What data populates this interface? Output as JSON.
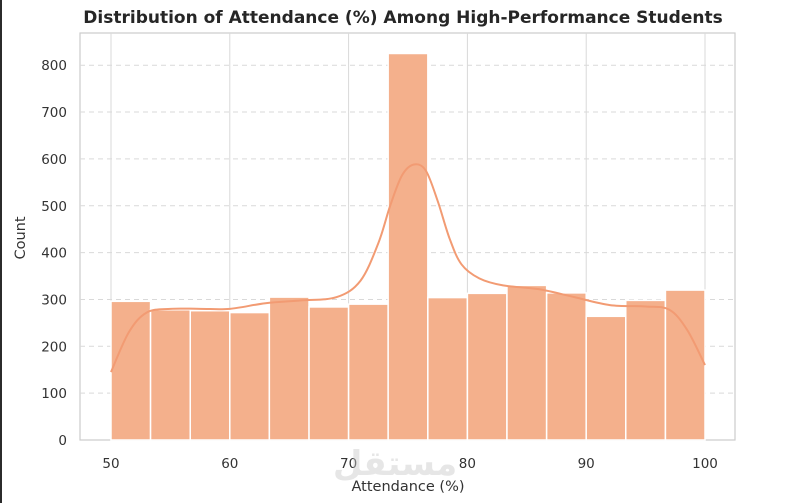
{
  "chart_data": {
    "type": "bar",
    "title": "Distribution of Attendance (%) Among High-Performance Students",
    "xlabel": "Attendance (%)",
    "ylabel": "Count",
    "xlim": [
      50,
      100
    ],
    "ylim": [
      0,
      850
    ],
    "xticks": [
      50,
      60,
      70,
      80,
      90,
      100
    ],
    "yticks": [
      0,
      100,
      200,
      300,
      400,
      500,
      600,
      700,
      800
    ],
    "bin_width": 3.333,
    "bins": [
      {
        "start": 50.0,
        "end": 53.33,
        "count": 296
      },
      {
        "start": 53.33,
        "end": 56.67,
        "count": 278
      },
      {
        "start": 56.67,
        "end": 60.0,
        "count": 276
      },
      {
        "start": 60.0,
        "end": 63.33,
        "count": 272
      },
      {
        "start": 63.33,
        "end": 66.67,
        "count": 305
      },
      {
        "start": 66.67,
        "end": 70.0,
        "count": 284
      },
      {
        "start": 70.0,
        "end": 73.33,
        "count": 290
      },
      {
        "start": 73.33,
        "end": 76.67,
        "count": 825
      },
      {
        "start": 76.67,
        "end": 80.0,
        "count": 304
      },
      {
        "start": 80.0,
        "end": 83.33,
        "count": 313
      },
      {
        "start": 83.33,
        "end": 86.67,
        "count": 330
      },
      {
        "start": 86.67,
        "end": 90.0,
        "count": 314
      },
      {
        "start": 90.0,
        "end": 93.33,
        "count": 264
      },
      {
        "start": 93.33,
        "end": 96.67,
        "count": 298
      },
      {
        "start": 96.67,
        "end": 100.0,
        "count": 320
      }
    ],
    "kde": {
      "x": [
        50,
        51.5,
        53,
        55,
        57.5,
        60,
        63,
        66,
        69,
        71,
        72.5,
        73.5,
        74.5,
        75.5,
        76.5,
        77.5,
        78.5,
        79.5,
        81,
        83,
        86,
        89,
        92,
        95,
        97,
        98.5,
        100
      ],
      "y": [
        145,
        230,
        272,
        280,
        280,
        280,
        292,
        298,
        305,
        340,
        420,
        500,
        565,
        588,
        575,
        510,
        430,
        375,
        345,
        330,
        322,
        305,
        288,
        285,
        278,
        235,
        160
      ]
    },
    "colors": {
      "bar": "#f4b08c",
      "bar_edge": "#ffffff",
      "kde": "#f29b73",
      "grid": "#d9d9d9",
      "frame": "#cccccc"
    },
    "grid": "on (vertical solid, horizontal dashed)",
    "watermark": "مستقل"
  }
}
